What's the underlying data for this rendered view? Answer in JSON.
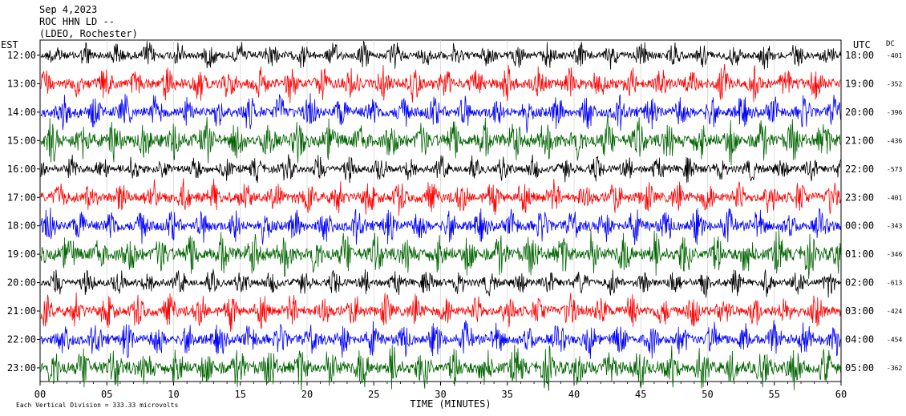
{
  "header": {
    "date": "Sep 4,2023",
    "station": "ROC HHN LD --",
    "network": "(LDEO, Rochester)"
  },
  "chart_data": {
    "type": "line",
    "title": "Sep 4,2023",
    "left_axis_label": "EST",
    "right_axis_label": "UTC",
    "dc_label": "DC",
    "xlabel": "TIME (MINUTES)",
    "xlim": [
      0,
      60
    ],
    "x_ticks": [
      "00",
      "05",
      "10",
      "15",
      "20",
      "25",
      "30",
      "35",
      "40",
      "45",
      "50",
      "55",
      "60"
    ],
    "footnote": "Each Vertical Division =  333.33 microvolts",
    "colors": [
      "#000000",
      "#ff0000",
      "#0000ff",
      "#006400"
    ],
    "series": [
      {
        "est": "12:00",
        "utc": "18:00",
        "dc": "-401",
        "color": "#000000"
      },
      {
        "est": "13:00",
        "utc": "19:00",
        "dc": "-352",
        "color": "#ff0000"
      },
      {
        "est": "14:00",
        "utc": "20:00",
        "dc": "-396",
        "color": "#0000ff"
      },
      {
        "est": "15:00",
        "utc": "21:00",
        "dc": "-436",
        "color": "#006400"
      },
      {
        "est": "16:00",
        "utc": "22:00",
        "dc": "-573",
        "color": "#000000"
      },
      {
        "est": "17:00",
        "utc": "23:00",
        "dc": "-401",
        "color": "#ff0000"
      },
      {
        "est": "18:00",
        "utc": "00:00",
        "dc": "-343",
        "color": "#0000ff"
      },
      {
        "est": "19:00",
        "utc": "01:00",
        "dc": "-346",
        "color": "#006400"
      },
      {
        "est": "20:00",
        "utc": "02:00",
        "dc": "-613",
        "color": "#000000"
      },
      {
        "est": "21:00",
        "utc": "03:00",
        "dc": "-424",
        "color": "#ff0000"
      },
      {
        "est": "22:00",
        "utc": "04:00",
        "dc": "-454",
        "color": "#0000ff"
      },
      {
        "est": "23:00",
        "utc": "05:00",
        "dc": "-362",
        "color": "#006400"
      }
    ]
  }
}
